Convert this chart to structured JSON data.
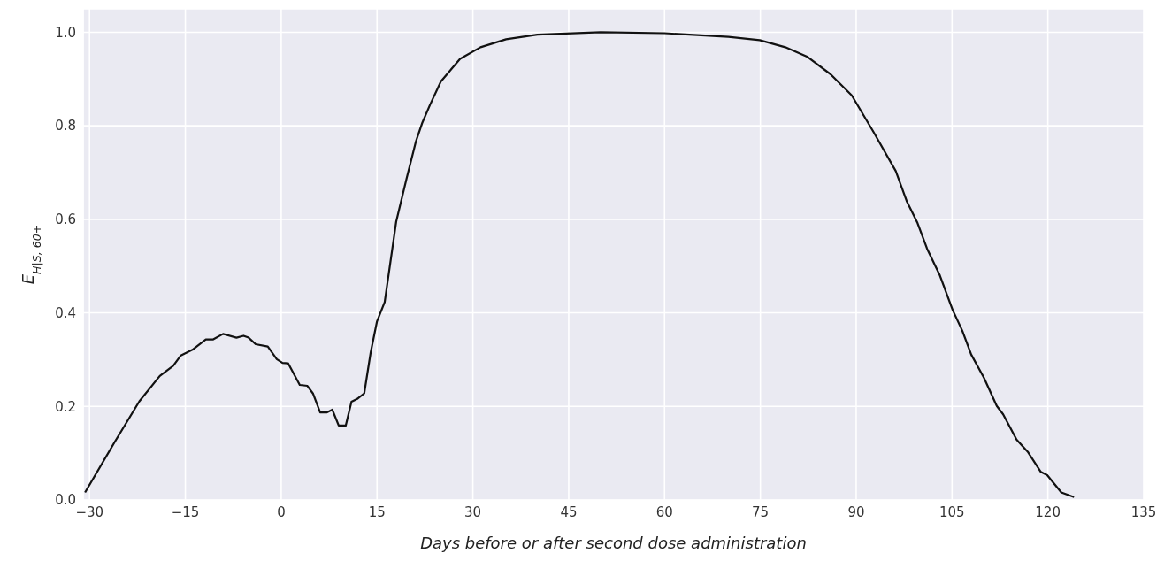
{
  "chart_data": {
    "type": "line",
    "xlabel": "Days before or after second dose administration",
    "ylabel": "E$_{H|S, 60+}$",
    "x": [
      -30.7,
      -26.1,
      -22.2,
      -19.0,
      -16.9,
      -15.7,
      -13.9,
      -11.8,
      -10.7,
      -9.1,
      -7.0,
      -5.9,
      -5.1,
      -4.0,
      -2.1,
      -0.7,
      0.2,
      1.1,
      2.9,
      4.1,
      5.0,
      6.1,
      7.1,
      8.0,
      9.0,
      10.1,
      11.0,
      11.9,
      13.0,
      14.0,
      15.0,
      16.2,
      18.0,
      19.6,
      21.1,
      22.1,
      23.3,
      25.0,
      28.0,
      31.2,
      35.2,
      40.1,
      50.0,
      60.0,
      70.0,
      74.9,
      78.9,
      82.3,
      86.0,
      89.3,
      92.7,
      96.2,
      97.9,
      99.6,
      101.1,
      103.1,
      105.1,
      106.6,
      108.0,
      110.0,
      112.0,
      113.0,
      115.1,
      116.9,
      118.9,
      119.9,
      122.1,
      124.1
    ],
    "series": [
      {
        "color": "#111111",
        "values": [
          0.016,
          0.123,
          0.211,
          0.265,
          0.287,
          0.309,
          0.321,
          0.343,
          0.343,
          0.355,
          0.347,
          0.351,
          0.347,
          0.333,
          0.328,
          0.301,
          0.293,
          0.292,
          0.246,
          0.244,
          0.227,
          0.187,
          0.187,
          0.193,
          0.159,
          0.159,
          0.21,
          0.216,
          0.228,
          0.315,
          0.382,
          0.423,
          0.595,
          0.686,
          0.767,
          0.807,
          0.845,
          0.895,
          0.943,
          0.968,
          0.985,
          0.995,
          1.0,
          0.998,
          0.99,
          0.983,
          0.968,
          0.948,
          0.91,
          0.865,
          0.787,
          0.703,
          0.639,
          0.592,
          0.537,
          0.48,
          0.406,
          0.362,
          0.311,
          0.261,
          0.201,
          0.183,
          0.129,
          0.102,
          0.06,
          0.053,
          0.016,
          0.006
        ]
      }
    ],
    "xlim": [
      -31,
      135
    ],
    "xticks": [
      {
        "value": -30,
        "label": "−30"
      },
      {
        "value": -15,
        "label": "−15"
      },
      0,
      15,
      30,
      45,
      60,
      75,
      90,
      105,
      120,
      135
    ],
    "ylim": [
      0,
      1.05
    ],
    "yticks": [
      {
        "value": 0,
        "label": "0.0"
      },
      0.2,
      0.4,
      0.6,
      0.8,
      {
        "value": 1,
        "label": "1.0"
      }
    ],
    "grid": true,
    "marker": "none",
    "line_style": "solid"
  }
}
